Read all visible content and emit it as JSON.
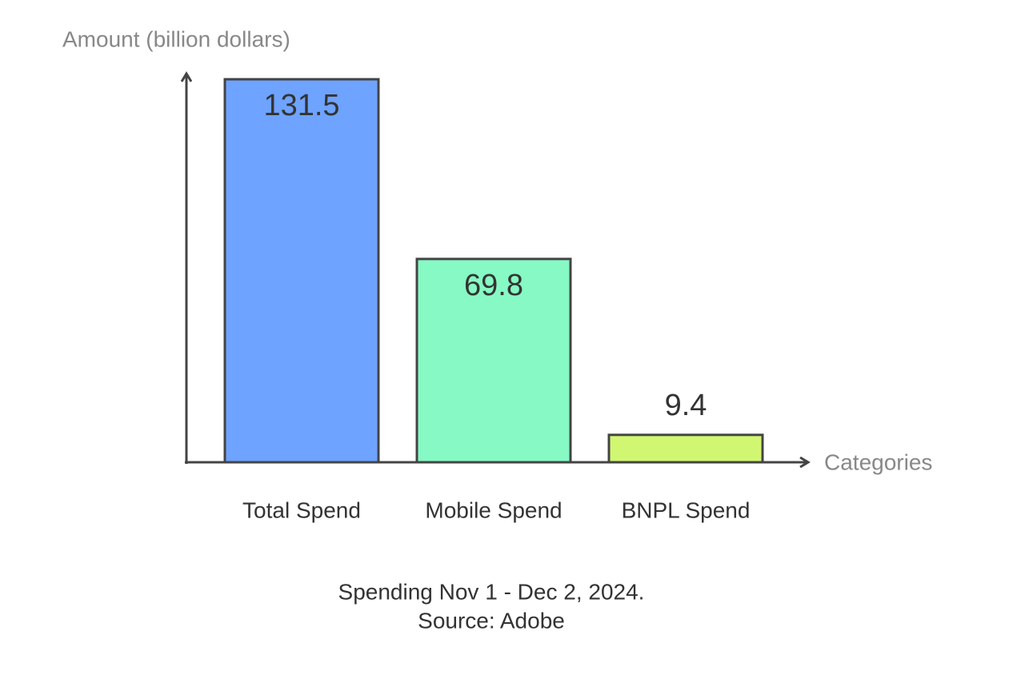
{
  "chart_data": {
    "type": "bar",
    "y_label": "Amount (billion dollars)",
    "x_label": "Categories",
    "categories": [
      "Total Spend",
      "Mobile Spend",
      "BNPL Spend"
    ],
    "values": [
      131.5,
      69.8,
      9.4
    ],
    "colors": [
      "#6ea3ff",
      "#86f9c4",
      "#d1f772"
    ],
    "ylim": [
      0,
      134
    ],
    "grid": false,
    "caption": [
      "Spending Nov 1 - Dec 2, 2024.",
      "Source: Adobe"
    ]
  }
}
